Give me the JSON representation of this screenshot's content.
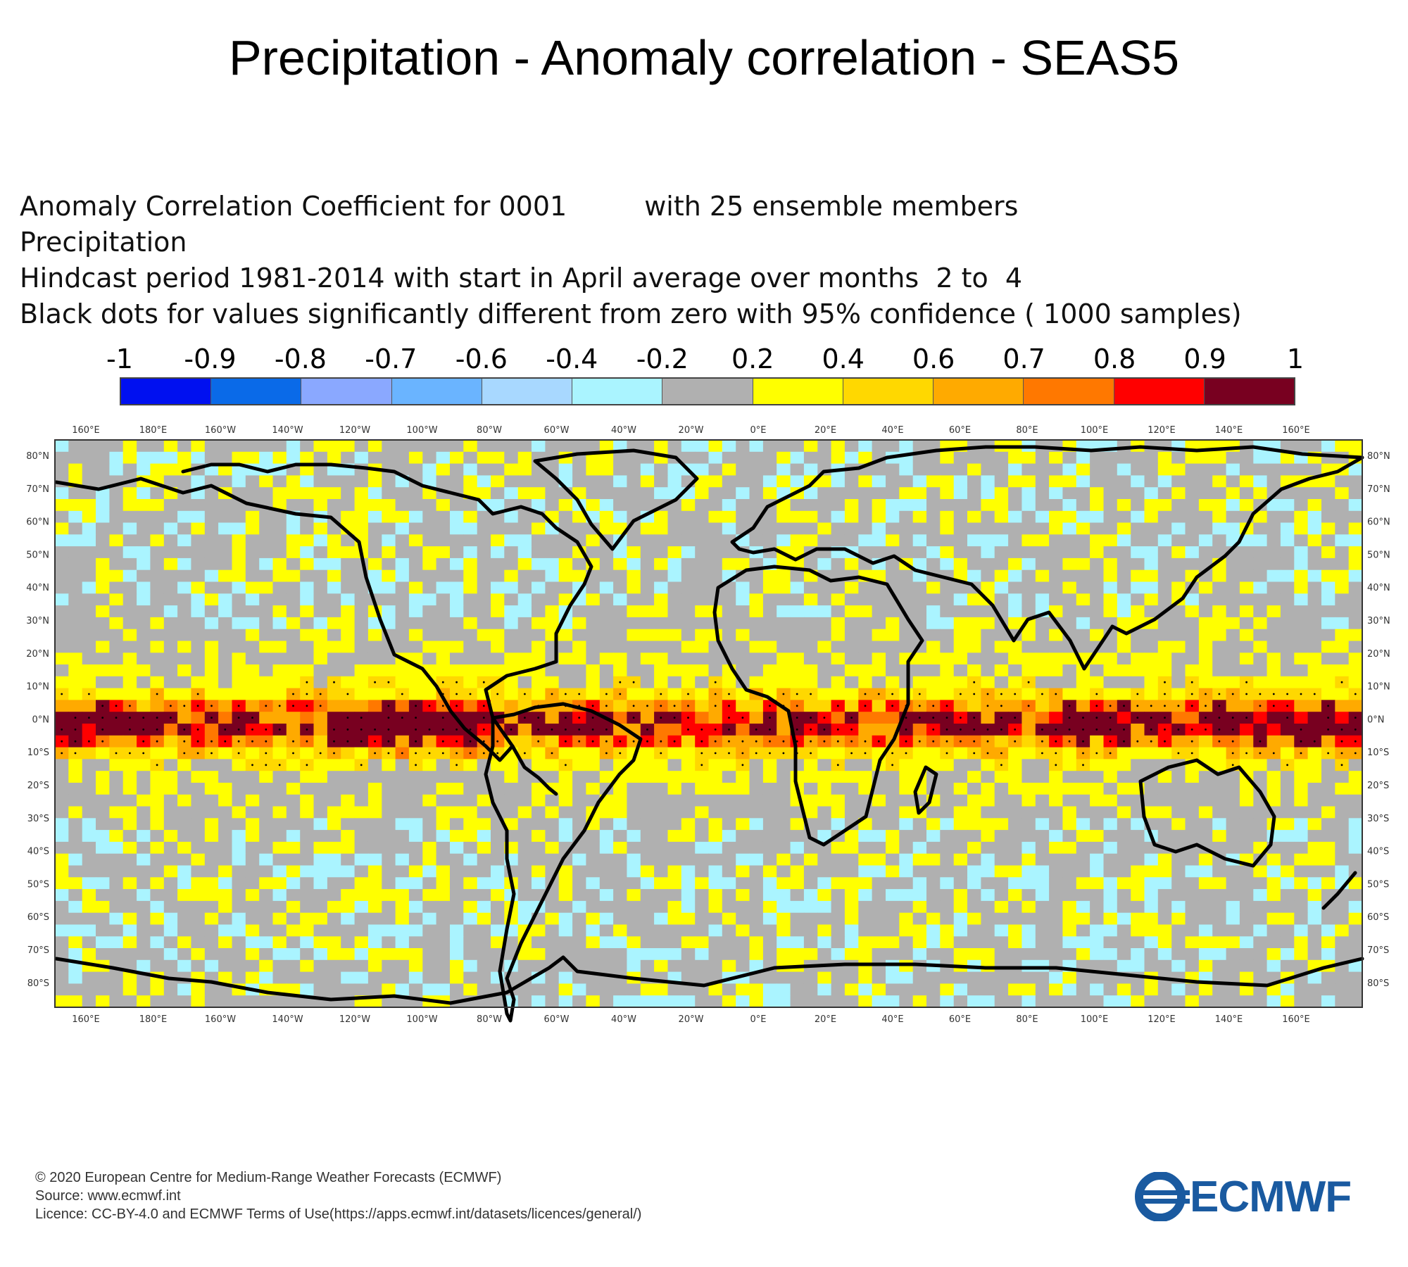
{
  "title": "Precipitation - Anomaly correlation - SEAS5",
  "info": {
    "line1a": "Anomaly Correlation Coefficient for 0001",
    "line1b": "with 25 ensemble members",
    "line2": "Precipitation",
    "line3": "Hindcast period 1981-2014 with start in April average over months  2 to  4",
    "line4": "Black dots for values significantly different from zero with 95% confidence ( 1000 samples)"
  },
  "colorbar": {
    "labels": [
      "-1",
      "-0.9",
      "-0.8",
      "-0.7",
      "-0.6",
      "-0.4",
      "-0.2",
      "0.2",
      "0.4",
      "0.6",
      "0.7",
      "0.8",
      "0.9",
      "1"
    ],
    "colors": [
      "#0010f0",
      "#0a6ae8",
      "#8aa8ff",
      "#6ab4ff",
      "#a8d8ff",
      "#aaf4ff",
      "#b0b0b0",
      "#ffff00",
      "#ffd800",
      "#ffaa00",
      "#ff7800",
      "#ff0000",
      "#780020"
    ]
  },
  "map": {
    "lon_labels": [
      "160°E",
      "180°E",
      "160°W",
      "140°W",
      "120°W",
      "100°W",
      "80°W",
      "60°W",
      "40°W",
      "20°W",
      "0°E",
      "20°E",
      "40°E",
      "60°E",
      "80°E",
      "100°E",
      "120°E",
      "140°E",
      "160°E"
    ],
    "lat_labels": [
      "80°N",
      "70°N",
      "60°N",
      "50°N",
      "40°N",
      "30°N",
      "20°N",
      "10°N",
      "0°N",
      "10°S",
      "20°S",
      "30°S",
      "40°S",
      "50°S",
      "60°S",
      "70°S",
      "80°S"
    ]
  },
  "footer": {
    "line1": "© 2020 European Centre for Medium-Range Weather Forecasts (ECMWF)",
    "line2": "Source: www.ecmwf.int",
    "line3": "Licence: CC-BY-4.0 and ECMWF Terms of Use(https://apps.ecmwf.int/datasets/licences/general/)"
  },
  "logo_text": "ECMWF",
  "colors": {
    "brand": "#1a5aa0",
    "neutral": "#b0b0b0"
  }
}
